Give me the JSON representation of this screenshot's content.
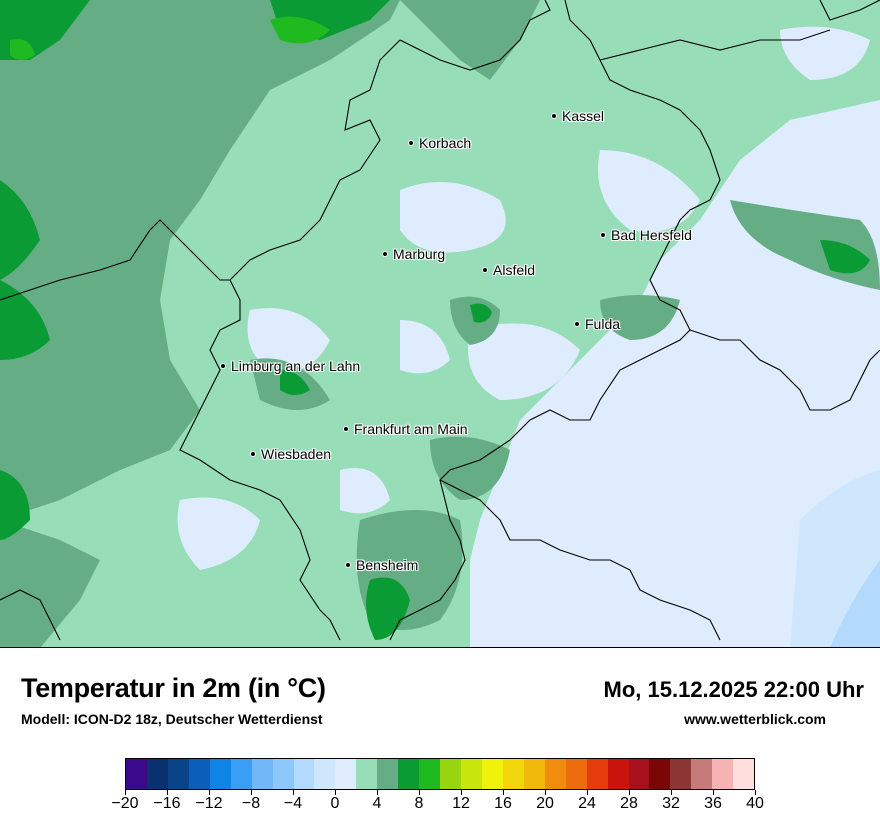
{
  "title": "Temperatur in 2m (in °C)",
  "model_info": "Modell: ICON-D2 18z, Deutscher Wetterdienst",
  "datetime": "Mo, 15.12.2025 22:00 Uhr",
  "website": "www.wetterblick.com",
  "cities": [
    {
      "id": "kassel",
      "name": "Kassel"
    },
    {
      "id": "korbach",
      "name": "Korbach"
    },
    {
      "id": "bad-hersfeld",
      "name": "Bad Hersfeld"
    },
    {
      "id": "marburg",
      "name": "Marburg"
    },
    {
      "id": "alsfeld",
      "name": "Alsfeld"
    },
    {
      "id": "fulda",
      "name": "Fulda"
    },
    {
      "id": "limburg",
      "name": "Limburg an der Lahn"
    },
    {
      "id": "frankfurt",
      "name": "Frankfurt am Main"
    },
    {
      "id": "wiesbaden",
      "name": "Wiesbaden"
    },
    {
      "id": "bensheim",
      "name": "Bensheim"
    }
  ],
  "legend": {
    "colors": [
      "#3a0a8c",
      "#08316e",
      "#0a4488",
      "#0b5fbb",
      "#0d84e6",
      "#3a9ef5",
      "#70b8f7",
      "#8ec7fa",
      "#b3dafc",
      "#cfe7fd",
      "#dfecfd",
      "#96ddb8",
      "#65ad84",
      "#0a9b34",
      "#1fba1f",
      "#99d410",
      "#c9e60c",
      "#f0f20a",
      "#f2d80b",
      "#f0b90c",
      "#f18c0f",
      "#ef6c0e",
      "#e43d0b",
      "#c8140c",
      "#a8101e",
      "#7a0606",
      "#8c3535",
      "#c77a7a",
      "#f6b3b3",
      "#ffdede"
    ],
    "tick_labels": [
      "−20",
      "−16",
      "−12",
      "−8",
      "−4",
      "0",
      "4",
      "8",
      "12",
      "16",
      "20",
      "24",
      "28",
      "32",
      "36",
      "40"
    ]
  }
}
